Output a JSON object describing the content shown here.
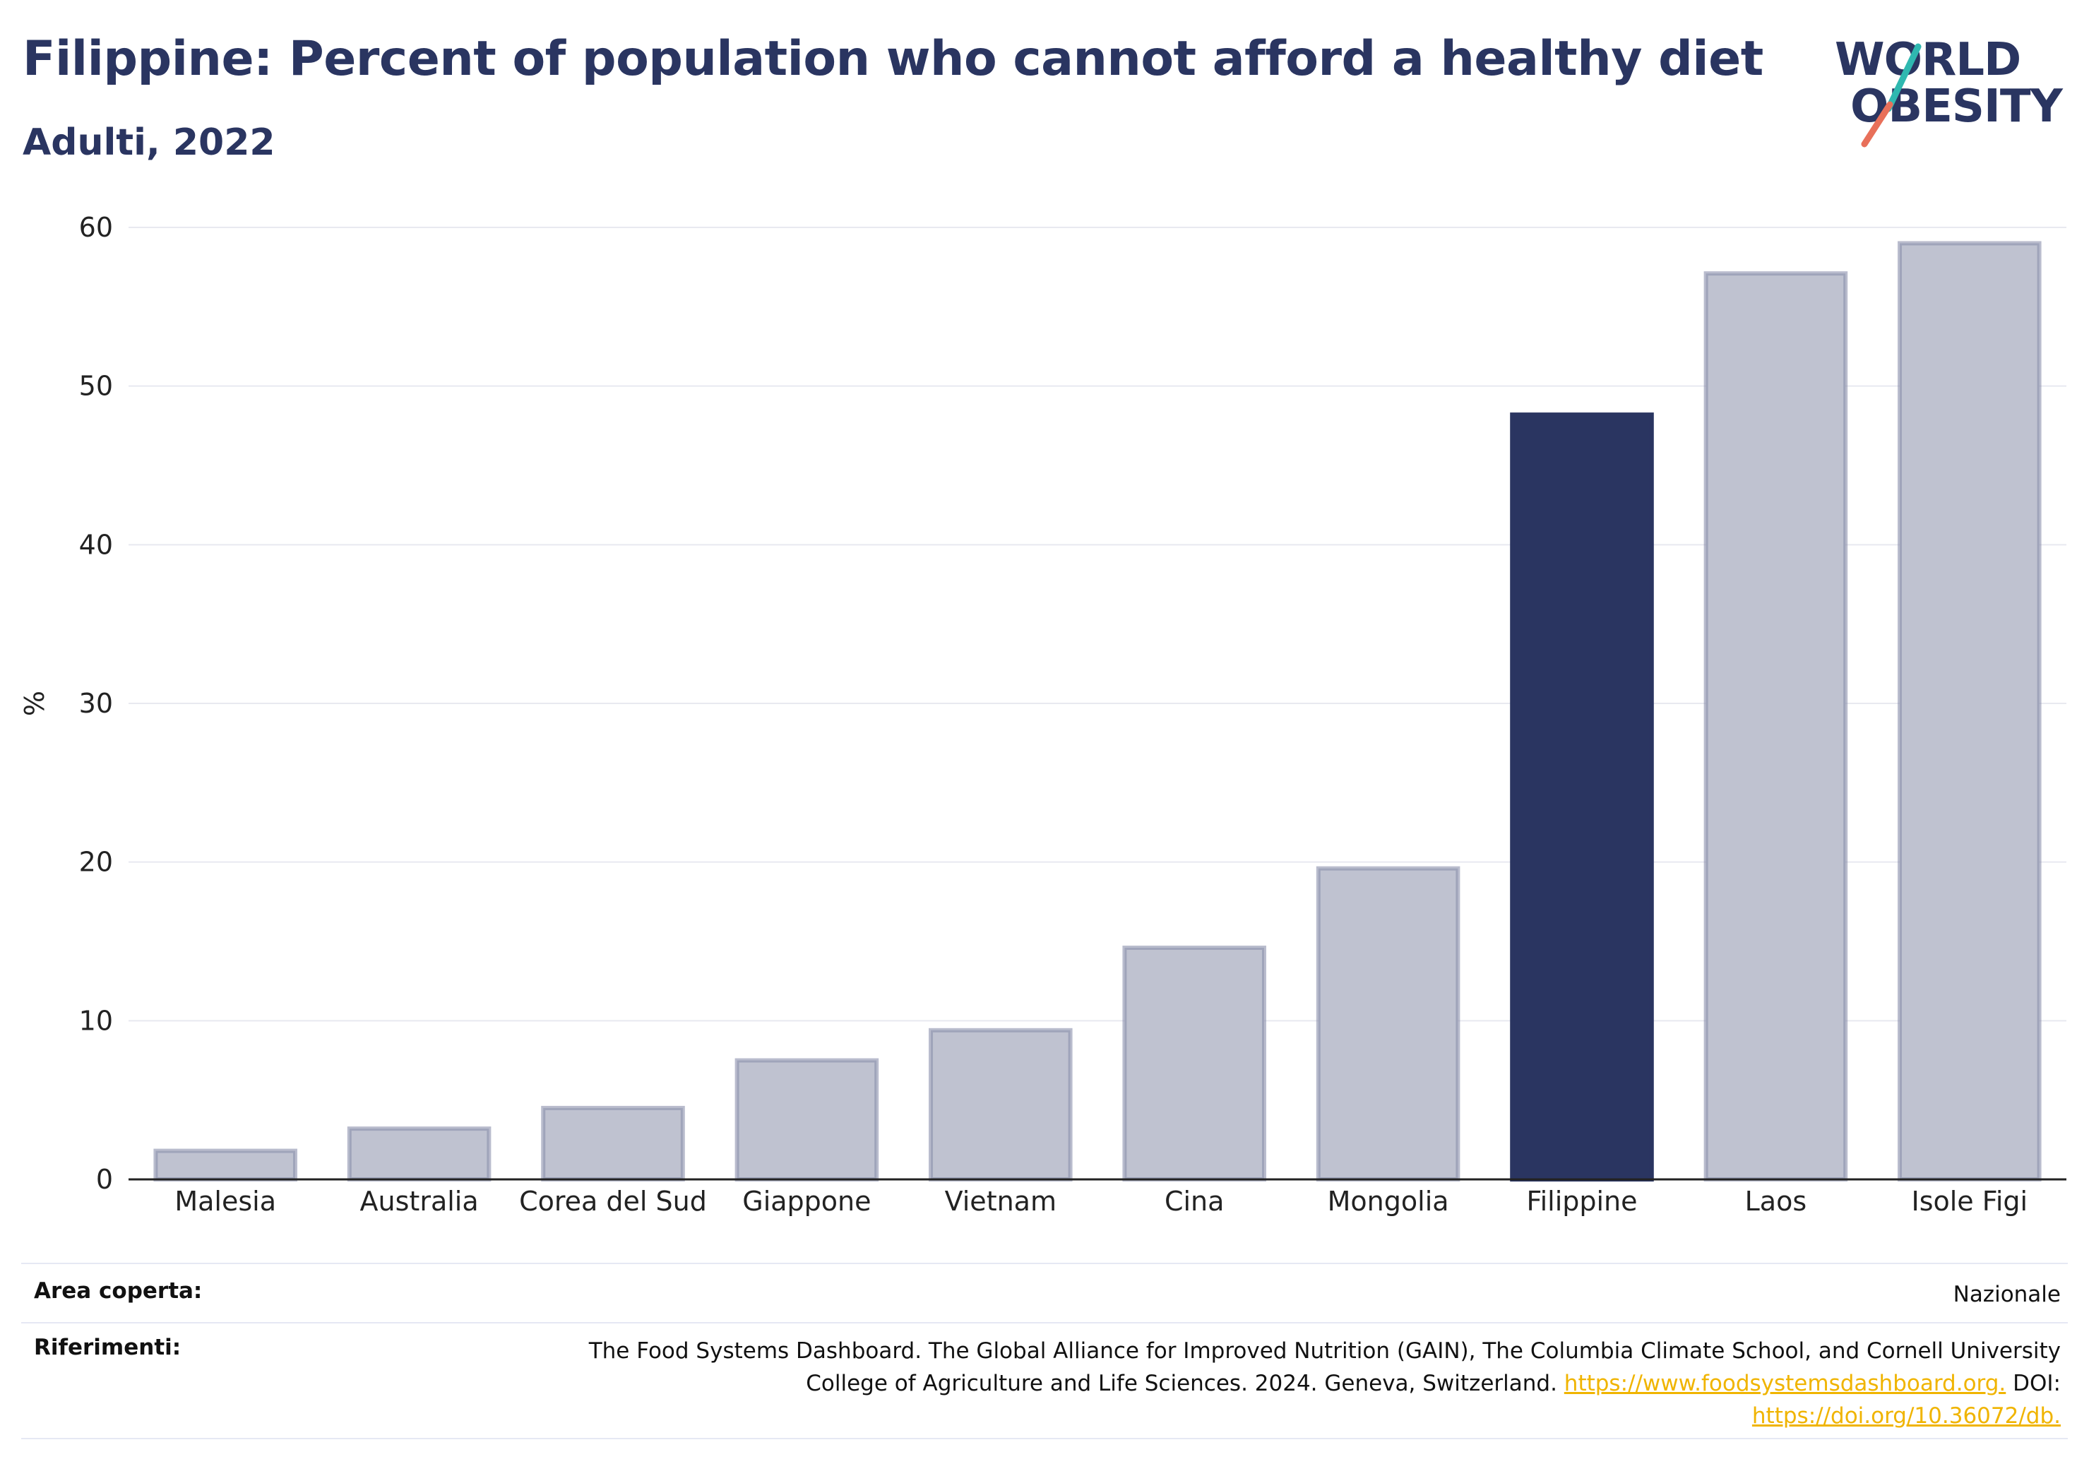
{
  "header": {
    "title": "Filippine: Percent of population who cannot afford a healthy diet",
    "subtitle": "Adulti, 2022",
    "logo_line1": "WORLD",
    "logo_line2": "OBESITY"
  },
  "colors": {
    "highlight": "#2a3561",
    "bar_fill": "#bfc2d0",
    "bar_edge": "#8a8fab",
    "logo_teal": "#2fb8b0",
    "logo_coral": "#e8705a",
    "link": "#f0b400"
  },
  "chart_data": {
    "type": "bar",
    "categories": [
      "Malesia",
      "Australia",
      "Corea del Sud",
      "Giappone",
      "Vietnam",
      "Cina",
      "Mongolia",
      "Filippine",
      "Laos",
      "Isole Figi"
    ],
    "values": [
      1.8,
      3.2,
      4.5,
      7.5,
      9.4,
      14.6,
      19.6,
      48.2,
      57.1,
      59.0
    ],
    "highlight": "Filippine",
    "xlabel": "",
    "ylabel": "%",
    "ylim": [
      0,
      60
    ],
    "yticks": [
      0,
      10,
      20,
      30,
      40,
      50,
      60
    ],
    "grid": true
  },
  "footer": {
    "area_label": "Area coperta:",
    "area_value": "Nazionale",
    "ref_label": "Riferimenti:",
    "ref_line1": "The Food Systems Dashboard. The Global Alliance for Improved Nutrition (GAIN), The Columbia Climate School, and Cornell University",
    "ref_line2_text": "College of Agriculture and Life Sciences. 2024. Geneva, Switzerland.",
    "ref_link1": "https://www.foodsystemsdashboard.org.",
    "ref_doi_label": "DOI:",
    "ref_link2": "https://doi.org/10.36072/db."
  }
}
